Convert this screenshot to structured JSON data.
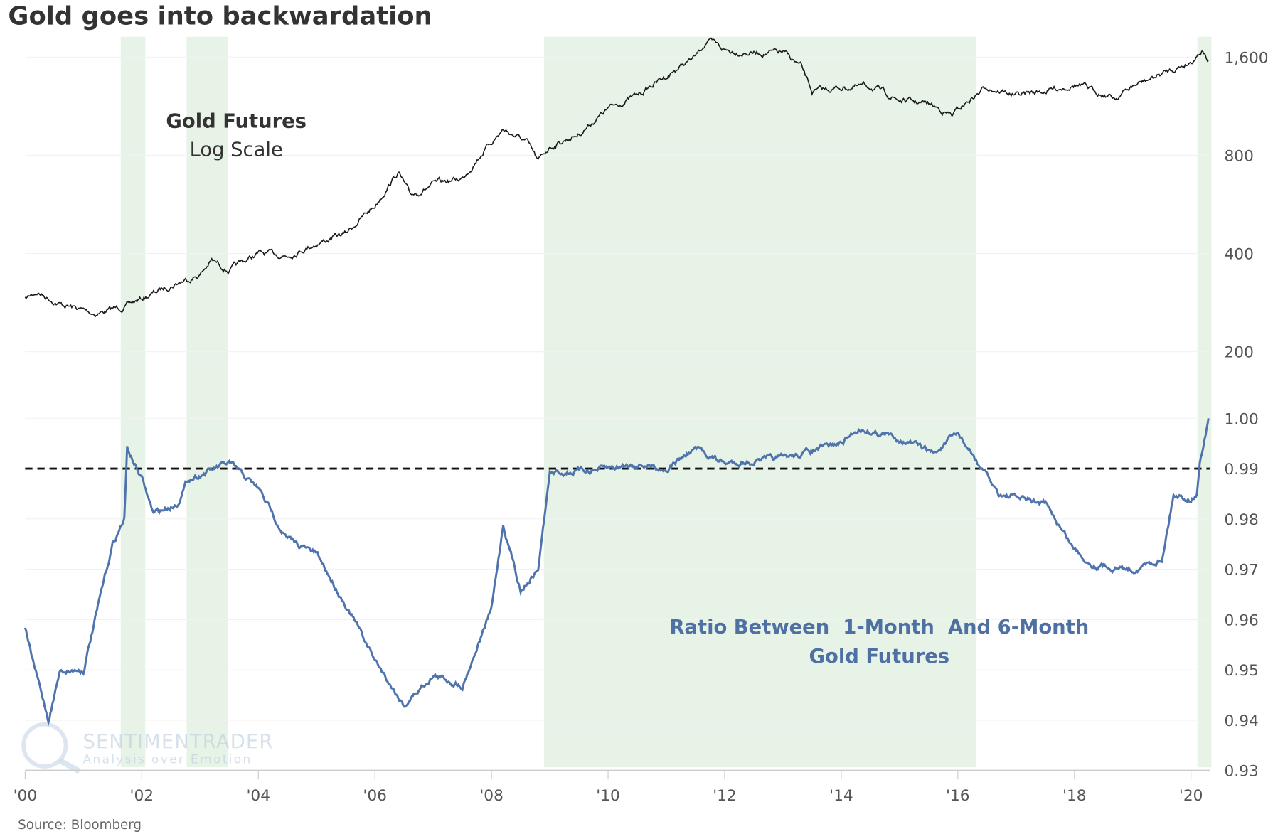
{
  "chart_data": [
    {
      "type": "line",
      "title": "Gold goes into backwardation",
      "series_name": "Gold Futures",
      "annotation": [
        "Gold Futures",
        "Log Scale"
      ],
      "yscale": "log",
      "ylim": [
        150,
        1800
      ],
      "yticks": [
        "1,600",
        "800",
        "400",
        "200"
      ],
      "ytick_values": [
        1600,
        800,
        400,
        200
      ],
      "color": "#1a1a1a",
      "x": [
        2000,
        2000.2,
        2000.6,
        2001.2,
        2001.7,
        2002,
        2002.5,
        2003,
        2003.2,
        2003.5,
        2004,
        2004.5,
        2005,
        2005.5,
        2006,
        2006.4,
        2006.6,
        2007,
        2007.5,
        2007.7,
        2008.2,
        2008.6,
        2008.8,
        2009,
        2009.5,
        2010,
        2010.5,
        2011,
        2011.5,
        2011.7,
        2012,
        2012.5,
        2013,
        2013.3,
        2013.5,
        2014,
        2014.5,
        2015,
        2015.5,
        2015.9,
        2016.5,
        2017,
        2017.5,
        2018,
        2018.7,
        2019,
        2019.5,
        2020,
        2020.2,
        2020.3
      ],
      "values": [
        290,
        305,
        280,
        262,
        275,
        290,
        320,
        345,
        380,
        355,
        400,
        395,
        430,
        460,
        560,
        710,
        600,
        650,
        680,
        760,
        960,
        880,
        760,
        850,
        930,
        1110,
        1220,
        1400,
        1600,
        1800,
        1680,
        1650,
        1650,
        1500,
        1250,
        1290,
        1300,
        1180,
        1150,
        1060,
        1300,
        1220,
        1260,
        1320,
        1200,
        1300,
        1420,
        1550,
        1700,
        1560
      ],
      "legend": "none"
    },
    {
      "type": "line",
      "series_name": "Ratio Between 1-Month And 6-Month Gold Futures",
      "annotation": [
        "Ratio Between  1-Month  And 6-Month",
        "Gold Futures"
      ],
      "ylim": [
        0.93,
        1.0
      ],
      "yticks": [
        "1.00",
        "0.99",
        "0.98",
        "0.97",
        "0.96",
        "0.95",
        "0.94",
        "0.93"
      ],
      "ytick_values": [
        1.0,
        0.99,
        0.98,
        0.97,
        0.96,
        0.95,
        0.94,
        0.93
      ],
      "color": "#4f74ad",
      "reference_line": 0.99,
      "x": [
        2000,
        2000.1,
        2000.4,
        2000.6,
        2001,
        2001.3,
        2001.5,
        2001.7,
        2001.75,
        2002,
        2002.2,
        2002.6,
        2002.8,
        2003.5,
        2004,
        2004.3,
        2004.5,
        2005,
        2005.5,
        2006,
        2006.5,
        2007,
        2007.5,
        2008,
        2008.2,
        2008.5,
        2008.8,
        2009,
        2010,
        2010.5,
        2011,
        2011.5,
        2012,
        2013,
        2014,
        2014.3,
        2015,
        2015.6,
        2016,
        2016.4,
        2016.7,
        2017.5,
        2018,
        2018.3,
        2019,
        2019.5,
        2019.7,
        2020,
        2020.1,
        2020.15,
        2020.3
      ],
      "values": [
        0.958,
        0.953,
        0.94,
        0.95,
        0.95,
        0.965,
        0.975,
        0.98,
        0.994,
        0.988,
        0.981,
        0.983,
        0.988,
        0.991,
        0.986,
        0.98,
        0.976,
        0.973,
        0.963,
        0.952,
        0.943,
        0.949,
        0.947,
        0.962,
        0.979,
        0.966,
        0.97,
        0.989,
        0.99,
        0.991,
        0.99,
        0.994,
        0.991,
        0.992,
        0.995,
        0.998,
        0.996,
        0.993,
        0.997,
        0.99,
        0.985,
        0.983,
        0.974,
        0.971,
        0.97,
        0.972,
        0.985,
        0.984,
        0.985,
        0.991,
        1.0
      ],
      "legend": "none"
    }
  ],
  "x_axis": {
    "ticks": [
      "'00",
      "'02",
      "'04",
      "'06",
      "'08",
      "'10",
      "'12",
      "'14",
      "'16",
      "'18",
      "'20"
    ],
    "tick_values": [
      2000,
      2002,
      2004,
      2006,
      2008,
      2010,
      2012,
      2014,
      2016,
      2018,
      2020
    ],
    "xlim": [
      2000,
      2020.35
    ]
  },
  "shaded_periods": [
    [
      2001.64,
      2002.06
    ],
    [
      2002.77,
      2003.48
    ],
    [
      2008.9,
      2016.32
    ],
    [
      2020.11,
      2020.35
    ]
  ],
  "shade_color": "#e8f3e8",
  "source": "Source: Bloomberg",
  "watermark": {
    "brand": "SENTIMENTRADER",
    "tagline": "Analysis over Emotion"
  }
}
